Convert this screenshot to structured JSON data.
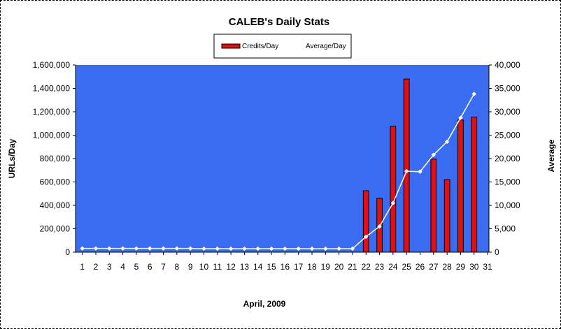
{
  "chart_data": {
    "type": "bar",
    "title": "CALEB's Daily Stats",
    "xlabel": "April, 2009",
    "ylabel": "URLs/Day",
    "y2label": "Average",
    "ylim": [
      0,
      1600000
    ],
    "y2lim": [
      0,
      40000
    ],
    "y_ticks": [
      "0",
      "200,000",
      "400,000",
      "600,000",
      "800,000",
      "1,000,000",
      "1,200,000",
      "1,400,000",
      "1,600,000"
    ],
    "y2_ticks": [
      "0",
      "5,000",
      "10,000",
      "15,000",
      "20,000",
      "25,000",
      "30,000",
      "35,000",
      "40,000"
    ],
    "categories": [
      "1",
      "2",
      "3",
      "4",
      "5",
      "6",
      "7",
      "8",
      "9",
      "10",
      "11",
      "12",
      "13",
      "14",
      "15",
      "16",
      "17",
      "18",
      "19",
      "20",
      "21",
      "22",
      "23",
      "24",
      "25",
      "26",
      "27",
      "28",
      "29",
      "30",
      "31"
    ],
    "legend_position": "top",
    "plot_background": "#3a6cf2",
    "series": [
      {
        "name": "Credits/Day",
        "type": "bar",
        "axis": "left",
        "color": "#e01010",
        "values": [
          0,
          0,
          0,
          0,
          0,
          0,
          0,
          0,
          0,
          0,
          0,
          0,
          0,
          0,
          0,
          0,
          0,
          0,
          0,
          0,
          0,
          525000,
          460000,
          1075000,
          1480000,
          0,
          795000,
          620000,
          1130000,
          1155000,
          null
        ]
      },
      {
        "name": "Average/Day",
        "type": "line",
        "axis": "right",
        "color": "#ffffff",
        "values": [
          800,
          800,
          800,
          800,
          800,
          800,
          800,
          800,
          800,
          750,
          750,
          750,
          750,
          750,
          750,
          750,
          750,
          750,
          750,
          750,
          750,
          3300,
          5500,
          10500,
          17300,
          17200,
          20800,
          23600,
          28700,
          33800,
          null
        ]
      }
    ]
  }
}
